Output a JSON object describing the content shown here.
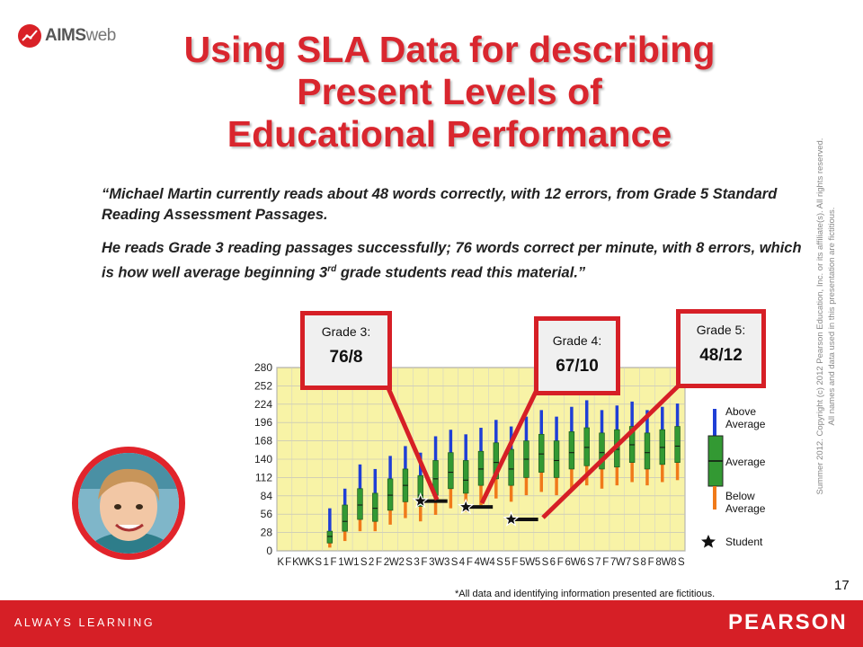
{
  "logo": {
    "text_main": "AIMS",
    "text_sub": "web",
    "icon": "aimsweb-logo-icon"
  },
  "title": {
    "line1": "Using SLA Data for describing",
    "line2": "Present Levels of",
    "line3": "Educational Performance"
  },
  "quote": {
    "p1": "“Michael Martin currently reads about 48 words correctly, with 12 errors, from Grade 5 Standard Reading Assessment Passages.",
    "p2_main": "He reads Grade 3 reading passages successfully;  76 words correct per minute, with 8 errors, which is how well average beginning 3",
    "p2_sup": "rd",
    "p2_end": " grade students read this material.”"
  },
  "copyright": {
    "line1": "Summer 2012.  Copyright (c) 2012 Pearson Education, Inc. or its affiliate(s).  All rights reserved.",
    "line2": "All names and data used in this presentation are fictitious."
  },
  "callouts": [
    {
      "label": "Grade 3:",
      "value": "76/8"
    },
    {
      "label": "Grade 4:",
      "value": "67/10"
    },
    {
      "label": "Grade 5:",
      "value": "48/12"
    }
  ],
  "legend": {
    "above_l1": "Above",
    "above_l2": "Average",
    "average": "Average",
    "below_l1": "Below",
    "below_l2": "Average",
    "student": "Student"
  },
  "footnote": "*All data and identifying information presented are fictitious.",
  "page_number": "17",
  "footer": {
    "tagline": "ALWAYS LEARNING",
    "brand": "PEARSON"
  },
  "colors": {
    "accent": "#d61f26",
    "box_green": "#339933",
    "above_blue": "#1f3fd6",
    "below_orange": "#f07a1a",
    "plot_bg": "#f8f3a6"
  },
  "chart_data": {
    "type": "box",
    "ylim": [
      0,
      280
    ],
    "y_ticks": [
      "0",
      "28",
      "56",
      "84",
      "112",
      "140",
      "168",
      "196",
      "224",
      "252",
      "280"
    ],
    "categories": [
      "KF",
      "KW",
      "KS",
      "1F",
      "1W",
      "1S",
      "2F",
      "2W",
      "2S",
      "3F",
      "3W",
      "3S",
      "4F",
      "4W",
      "4S",
      "5F",
      "5W",
      "5S",
      "6F",
      "6W",
      "6S",
      "7F",
      "7W",
      "7S",
      "8F",
      "8W",
      "8S"
    ],
    "x_tick_text": [
      "K",
      "F",
      "K",
      "W",
      "K",
      "S",
      "1",
      "F",
      "1",
      "W",
      "1",
      "S",
      "2",
      "F",
      "2",
      "W",
      "2",
      "S",
      "3",
      "F",
      "3",
      "W",
      "3",
      "S",
      "4",
      "F",
      "4",
      "W",
      "4",
      "S",
      "5",
      "F",
      "5",
      "W",
      "5",
      "S",
      "6",
      "F",
      "6",
      "W",
      "6",
      "S",
      "7",
      "F",
      "7",
      "W",
      "7",
      "S",
      "8",
      "F",
      "8",
      "W",
      "8",
      "S"
    ],
    "boxes": [
      null,
      null,
      null,
      {
        "low": 5,
        "q1": 12,
        "med": 22,
        "q3": 30,
        "high": 65
      },
      {
        "low": 15,
        "q1": 30,
        "med": 45,
        "q3": 70,
        "high": 95
      },
      {
        "low": 30,
        "q1": 48,
        "med": 70,
        "q3": 95,
        "high": 132
      },
      {
        "low": 30,
        "q1": 45,
        "med": 65,
        "q3": 88,
        "high": 125
      },
      {
        "low": 40,
        "q1": 62,
        "med": 85,
        "q3": 110,
        "high": 145
      },
      {
        "low": 50,
        "q1": 75,
        "med": 100,
        "q3": 125,
        "high": 160
      },
      {
        "low": 45,
        "q1": 68,
        "med": 85,
        "q3": 115,
        "high": 150
      },
      {
        "low": 55,
        "q1": 85,
        "med": 110,
        "q3": 138,
        "high": 175
      },
      {
        "low": 65,
        "q1": 95,
        "med": 120,
        "q3": 150,
        "high": 185
      },
      {
        "low": 60,
        "q1": 88,
        "med": 108,
        "q3": 138,
        "high": 178
      },
      {
        "low": 70,
        "q1": 100,
        "med": 125,
        "q3": 152,
        "high": 188
      },
      {
        "low": 80,
        "q1": 110,
        "med": 135,
        "q3": 165,
        "high": 200
      },
      {
        "low": 75,
        "q1": 100,
        "med": 125,
        "q3": 155,
        "high": 190
      },
      {
        "low": 85,
        "q1": 112,
        "med": 140,
        "q3": 168,
        "high": 205
      },
      {
        "low": 90,
        "q1": 120,
        "med": 148,
        "q3": 178,
        "high": 215
      },
      {
        "low": 85,
        "q1": 112,
        "med": 138,
        "q3": 168,
        "high": 205
      },
      {
        "low": 95,
        "q1": 125,
        "med": 150,
        "q3": 182,
        "high": 220
      },
      {
        "low": 100,
        "q1": 130,
        "med": 158,
        "q3": 188,
        "high": 230
      },
      {
        "low": 95,
        "q1": 125,
        "med": 150,
        "q3": 180,
        "high": 215
      },
      {
        "low": 100,
        "q1": 128,
        "med": 155,
        "q3": 185,
        "high": 222
      },
      {
        "low": 105,
        "q1": 135,
        "med": 162,
        "q3": 190,
        "high": 228
      },
      {
        "low": 100,
        "q1": 125,
        "med": 150,
        "q3": 180,
        "high": 215
      },
      {
        "low": 105,
        "q1": 132,
        "med": 158,
        "q3": 185,
        "high": 220
      },
      {
        "low": 108,
        "q1": 135,
        "med": 160,
        "q3": 190,
        "high": 225
      }
    ],
    "student_points": [
      {
        "category": "3F",
        "value": 76,
        "label": "Grade 3: 76/8"
      },
      {
        "category": "4F",
        "value": 67,
        "label": "Grade 4: 67/10"
      },
      {
        "category": "5F",
        "value": 48,
        "label": "Grade 5: 48/12"
      }
    ],
    "legend_position": "right",
    "grid": true
  }
}
